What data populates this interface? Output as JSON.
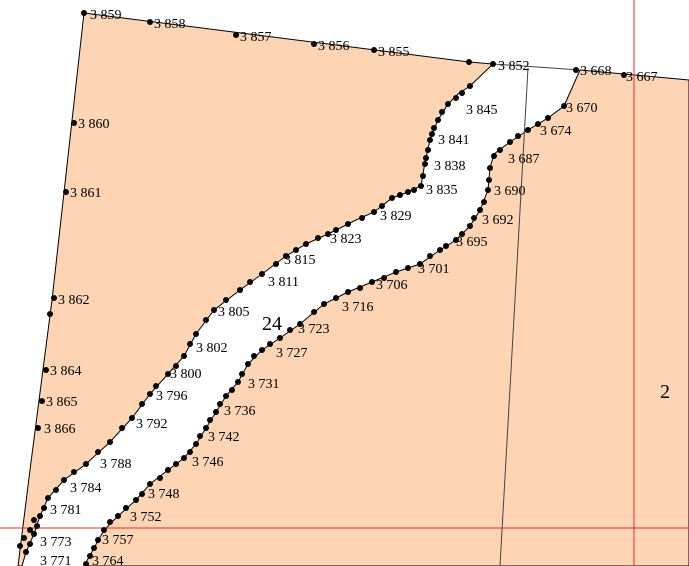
{
  "colors": {
    "parcel_fill": "#fdd5b4",
    "outline": "#000000",
    "boundary": "#444444",
    "grid_line": "#e53030",
    "vertex": "#000000"
  },
  "parcel_labels": [
    {
      "id": "24",
      "text": "24"
    },
    {
      "id": "2",
      "text": "2"
    }
  ],
  "point_labels": [
    {
      "id": "p3859",
      "text": "3 859"
    },
    {
      "id": "p3858",
      "text": "3 858"
    },
    {
      "id": "p3857",
      "text": "3 857"
    },
    {
      "id": "p3856",
      "text": "3 856"
    },
    {
      "id": "p3855",
      "text": "3 855"
    },
    {
      "id": "p3852",
      "text": "3 852"
    },
    {
      "id": "p3668",
      "text": "3 668"
    },
    {
      "id": "p3667",
      "text": "3 667"
    },
    {
      "id": "p3670",
      "text": "3 670"
    },
    {
      "id": "p3674",
      "text": "3 674"
    },
    {
      "id": "p3845",
      "text": "3 845"
    },
    {
      "id": "p3841",
      "text": "3 841"
    },
    {
      "id": "p3687",
      "text": "3 687"
    },
    {
      "id": "p3838",
      "text": "3 838"
    },
    {
      "id": "p3690",
      "text": "3 690"
    },
    {
      "id": "p3835",
      "text": "3 835"
    },
    {
      "id": "p3692",
      "text": "3 692"
    },
    {
      "id": "p3829",
      "text": "3 829"
    },
    {
      "id": "p3823",
      "text": "3 823"
    },
    {
      "id": "p3695",
      "text": "3 695"
    },
    {
      "id": "p3815",
      "text": "3 815"
    },
    {
      "id": "p3701",
      "text": "3 701"
    },
    {
      "id": "p3811",
      "text": "3 811"
    },
    {
      "id": "p3706",
      "text": "3 706"
    },
    {
      "id": "p3716",
      "text": "3 716"
    },
    {
      "id": "p3805",
      "text": "3 805"
    },
    {
      "id": "p3723",
      "text": "3 723"
    },
    {
      "id": "p3727",
      "text": "3 727"
    },
    {
      "id": "p3802",
      "text": "3 802"
    },
    {
      "id": "p3800",
      "text": "3 800"
    },
    {
      "id": "p3731",
      "text": "3 731"
    },
    {
      "id": "p3796",
      "text": "3 796"
    },
    {
      "id": "p3736",
      "text": "3 736"
    },
    {
      "id": "p3792",
      "text": "3 792"
    },
    {
      "id": "p3742",
      "text": "3 742"
    },
    {
      "id": "p3746",
      "text": "3 746"
    },
    {
      "id": "p3788",
      "text": "3 788"
    },
    {
      "id": "p3784",
      "text": "3 784"
    },
    {
      "id": "p3748",
      "text": "3 748"
    },
    {
      "id": "p3781",
      "text": "3 781"
    },
    {
      "id": "p3752",
      "text": "3 752"
    },
    {
      "id": "p3757",
      "text": "3 757"
    },
    {
      "id": "p3773",
      "text": "3 773"
    },
    {
      "id": "p3771",
      "text": "3 771"
    },
    {
      "id": "p3764",
      "text": "3 764"
    },
    {
      "id": "p3860",
      "text": "3 860"
    },
    {
      "id": "p3861",
      "text": "3 861"
    },
    {
      "id": "p3862",
      "text": "3 862"
    },
    {
      "id": "p3864",
      "text": "3 864"
    },
    {
      "id": "p3865",
      "text": "3 865"
    },
    {
      "id": "p3866",
      "text": "3 866"
    }
  ]
}
